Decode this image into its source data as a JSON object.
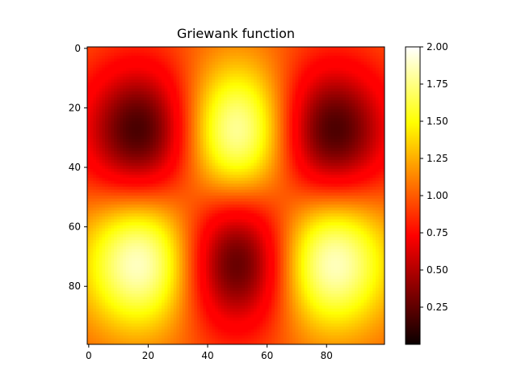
{
  "chart_data": {
    "type": "heatmap",
    "title": "Griewank function",
    "xlabel": "",
    "ylabel": "",
    "grid_size": 100,
    "x_ticks": [
      0,
      20,
      40,
      60,
      80
    ],
    "y_ticks": [
      0,
      20,
      40,
      60,
      80
    ],
    "y_axis_inverted": true,
    "colormap": "hot",
    "colorbar": {
      "min": 0.0,
      "max": 2.0,
      "ticks": [
        "0.25",
        "0.50",
        "0.75",
        "1.00",
        "1.25",
        "1.50",
        "1.75",
        "2.00"
      ]
    },
    "peaks": [
      {
        "row": 28,
        "col": 50,
        "value": 1.95
      },
      {
        "row": 72,
        "col": 18,
        "value": 1.95
      },
      {
        "row": 72,
        "col": 81,
        "value": 1.95
      }
    ],
    "troughs": [
      {
        "row": 28,
        "col": 18,
        "value": 0.05
      },
      {
        "row": 28,
        "col": 81,
        "value": 0.05
      },
      {
        "row": 72,
        "col": 50,
        "value": 0.05
      }
    ],
    "grid": false
  }
}
